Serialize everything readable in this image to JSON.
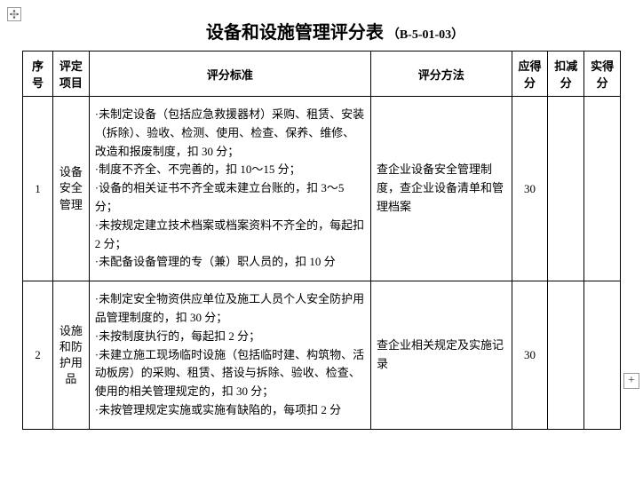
{
  "title": {
    "main": "设备和设施管理评分表",
    "code": "（B-5-01-03）"
  },
  "headers": {
    "seq": "序号",
    "item": "评定项目",
    "criteria": "评分标准",
    "method": "评分方法",
    "maxScore": "应得分",
    "deduct": "扣减分",
    "actual": "实得分"
  },
  "rows": [
    {
      "seq": "1",
      "item": "设备安全管理",
      "criteria": "·未制定设备（包括应急救援器材）采购、租赁、安装（拆除）、验收、检测、使用、检查、保养、维修、改造和报废制度，扣 30 分；\n·制度不齐全、不完善的，扣 10～15 分；\n·设备的相关证书不齐全或未建立台账的，扣 3～5 分；\n·未按规定建立技术档案或档案资料不齐全的，每起扣 2 分；\n·未配备设备管理的专（兼）职人员的，扣 10 分",
      "method": "查企业设备安全管理制度，查企业设备清单和管理档案",
      "maxScore": "30",
      "deduct": "",
      "actual": ""
    },
    {
      "seq": "2",
      "item": "设施和防护用品",
      "criteria": "·未制定安全物资供应单位及施工人员个人安全防护用品管理制度的，扣 30 分；\n·未按制度执行的，每起扣 2 分；\n·未建立施工现场临时设施（包括临时建、构筑物、活动板房）的采购、租赁、搭设与拆除、验收、检查、使用的相关管理规定的，扣 30 分；\n·未按管理规定实施或实施有缺陷的，每项扣 2 分",
      "method": "查企业相关规定及实施记录",
      "maxScore": "30",
      "deduct": "",
      "actual": ""
    }
  ]
}
